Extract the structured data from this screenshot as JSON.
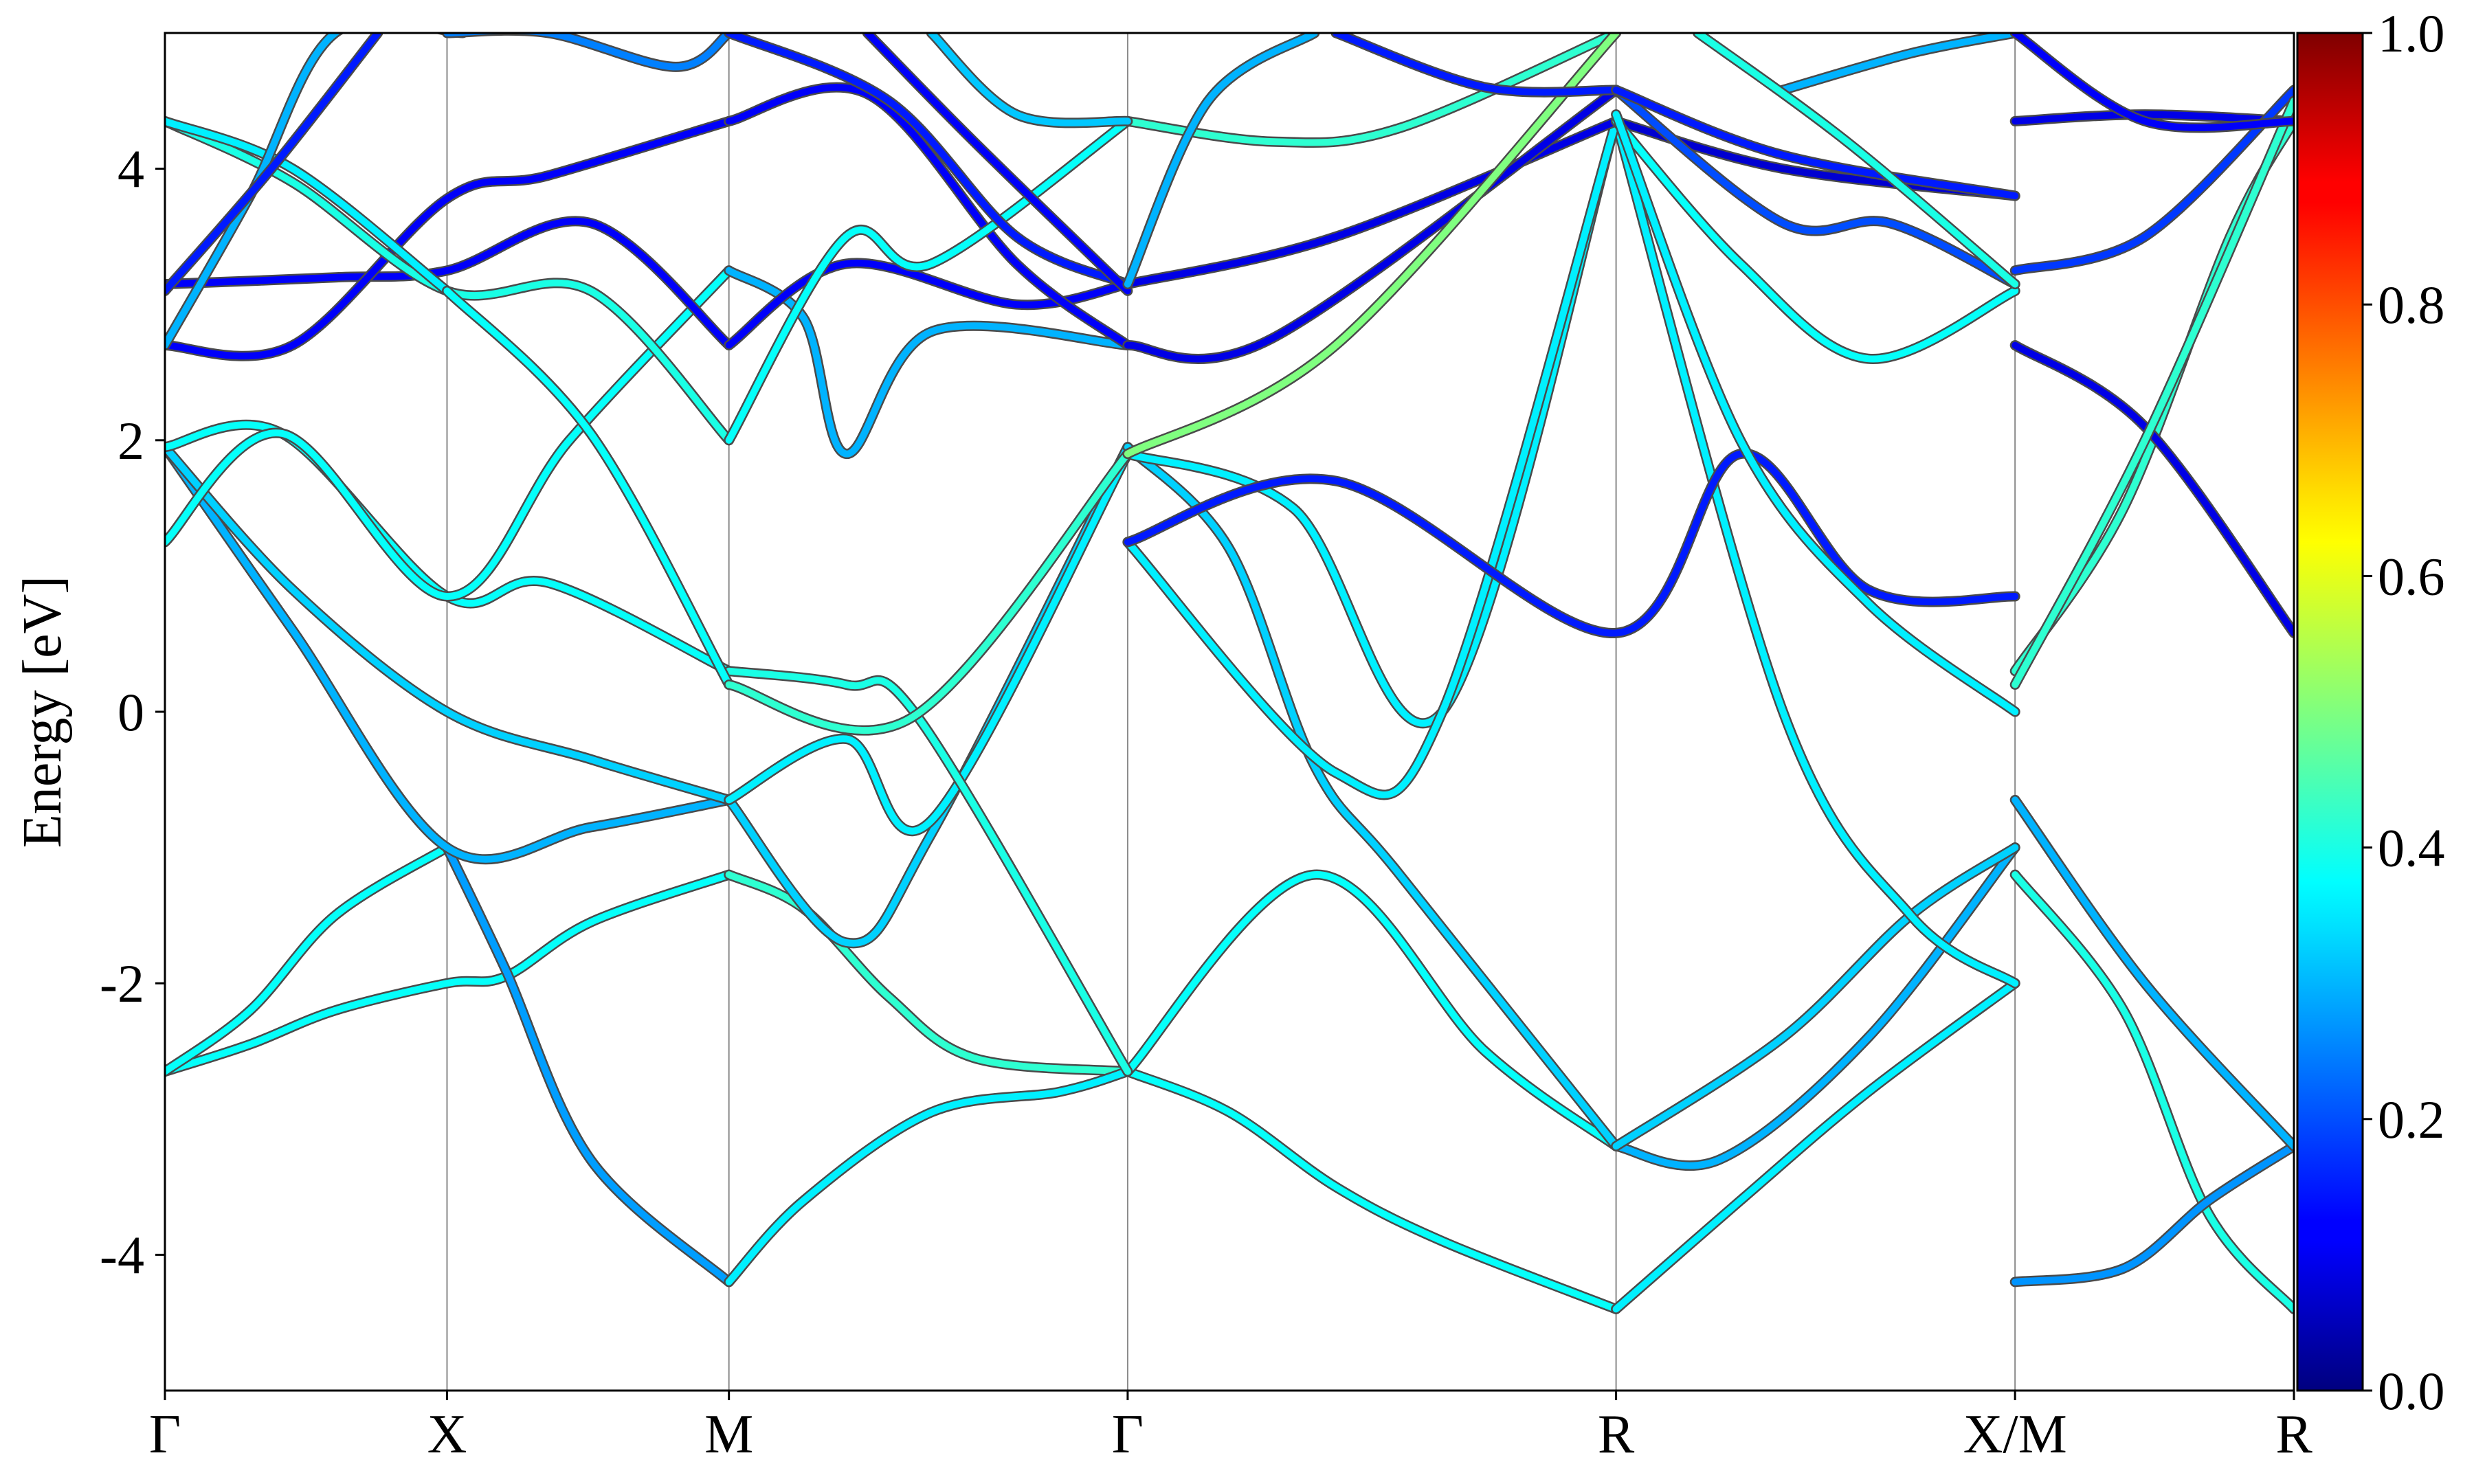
{
  "chart_data": {
    "type": "line",
    "subtype": "band-structure",
    "title": "",
    "xlabel": "",
    "ylabel": "Energy [eV]",
    "ylim": [
      -5,
      5
    ],
    "yticks": [
      -4,
      -2,
      0,
      2,
      4
    ],
    "ytick_labels": [
      "-4",
      "-2",
      "0",
      "2",
      "4"
    ],
    "xlim": [
      0,
      1
    ],
    "kpoints": [
      {
        "label": "Γ",
        "x": 0.0
      },
      {
        "label": "X",
        "x": 0.1325
      },
      {
        "label": "M",
        "x": 0.2649
      },
      {
        "label": "Γ",
        "x": 0.4522
      },
      {
        "label": "R",
        "x": 0.6816
      },
      {
        "label": "X/M",
        "x": 0.869
      },
      {
        "label": "R",
        "x": 1.0
      }
    ],
    "grid": "vertical lines at high-symmetry points",
    "colorbar": {
      "colormap": "jet",
      "range": [
        0.0,
        1.0
      ],
      "ticks": [
        0.0,
        0.2,
        0.4,
        0.6,
        0.8,
        1.0
      ],
      "tick_labels": [
        "0.0",
        "0.2",
        "0.4",
        "0.6",
        "0.8",
        "1.0"
      ],
      "placement": "right"
    },
    "series": [
      {
        "x": [
          0.0,
          0.04,
          0.08,
          0.1325,
          0.16,
          0.2,
          0.2649
        ],
        "y": [
          -2.65,
          -2.45,
          -2.2,
          -2.0,
          -1.95,
          -1.55,
          -1.2
        ],
        "weight": 0.38
      },
      {
        "x": [
          0.2649,
          0.3,
          0.34,
          0.38,
          0.4522
        ],
        "y": [
          -1.2,
          -1.45,
          -2.1,
          -2.55,
          -2.65
        ],
        "weight": 0.42
      },
      {
        "x": [
          0.4522,
          0.5,
          0.55,
          0.6,
          0.6816
        ],
        "y": [
          -2.65,
          -2.95,
          -3.5,
          -3.9,
          -4.4
        ],
        "weight": 0.38
      },
      {
        "x": [
          0.6816,
          0.74,
          0.8,
          0.869
        ],
        "y": [
          -4.4,
          -3.6,
          -2.8,
          -2.0
        ],
        "weight": 0.36
      },
      {
        "x": [
          0.869,
          0.92,
          0.96,
          1.0
        ],
        "y": [
          -1.2,
          -2.2,
          -3.7,
          -4.4
        ],
        "weight": 0.4
      },
      {
        "x": [
          0.0,
          0.04,
          0.08,
          0.1325
        ],
        "y": [
          -2.65,
          -2.2,
          -1.5,
          -1.0
        ],
        "weight": 0.38
      },
      {
        "x": [
          0.1325,
          0.16,
          0.2,
          0.2649
        ],
        "y": [
          -1.0,
          -1.9,
          -3.3,
          -4.2
        ],
        "weight": 0.28
      },
      {
        "x": [
          0.2649,
          0.3,
          0.36,
          0.42,
          0.4522
        ],
        "y": [
          -4.2,
          -3.6,
          -2.95,
          -2.8,
          -2.65
        ],
        "weight": 0.36
      },
      {
        "x": [
          0.4522,
          0.54,
          0.62,
          0.6816
        ],
        "y": [
          -2.65,
          -1.2,
          -2.5,
          -3.2
        ],
        "weight": 0.38
      },
      {
        "x": [
          0.6816,
          0.73,
          0.8,
          0.869
        ],
        "y": [
          -3.2,
          -3.3,
          -2.4,
          -1.0
        ],
        "weight": 0.3
      },
      {
        "x": [
          0.869,
          0.92,
          0.96,
          1.0
        ],
        "y": [
          -4.2,
          -4.1,
          -3.6,
          -3.2
        ],
        "weight": 0.27
      },
      {
        "x": [
          0.0,
          0.06,
          0.1325,
          0.2,
          0.2649
        ],
        "y": [
          1.95,
          0.6,
          -1.0,
          -0.85,
          -0.65
        ],
        "weight": 0.3
      },
      {
        "x": [
          0.2649,
          0.32,
          0.36,
          0.4522
        ],
        "y": [
          -0.65,
          -1.7,
          -0.9,
          1.95
        ],
        "weight": 0.33
      },
      {
        "x": [
          0.4522,
          0.5,
          0.54,
          0.58,
          0.6816
        ],
        "y": [
          1.95,
          1.2,
          -0.4,
          -1.2,
          -3.2
        ],
        "weight": 0.33
      },
      {
        "x": [
          0.6816,
          0.76,
          0.82,
          0.869
        ],
        "y": [
          -3.2,
          -2.4,
          -1.5,
          -1.0
        ],
        "weight": 0.33
      },
      {
        "x": [
          0.869,
          0.93,
          1.0
        ],
        "y": [
          -0.65,
          -2.0,
          -3.2
        ],
        "weight": 0.3
      },
      {
        "x": [
          0.0,
          0.06,
          0.1325,
          0.2,
          0.2649
        ],
        "y": [
          1.95,
          0.9,
          0.0,
          -0.35,
          -0.65
        ],
        "weight": 0.33
      },
      {
        "x": [
          0.2649,
          0.32,
          0.36,
          0.4522
        ],
        "y": [
          -0.65,
          -0.2,
          -0.8,
          1.9
        ],
        "weight": 0.36
      },
      {
        "x": [
          0.4522,
          0.53,
          0.6,
          0.6816
        ],
        "y": [
          1.9,
          1.5,
          0.0,
          4.35
        ],
        "weight": 0.36
      },
      {
        "x": [
          0.6816,
          0.76,
          0.82,
          0.869
        ],
        "y": [
          4.35,
          0.0,
          -1.5,
          -2.0
        ],
        "weight": 0.36
      },
      {
        "x": [
          0.869,
          0.92,
          0.97,
          1.0
        ],
        "y": [
          0.3,
          1.5,
          3.5,
          4.35
        ],
        "weight": 0.42
      },
      {
        "x": [
          0.0,
          0.055,
          0.1325,
          0.18,
          0.2649
        ],
        "y": [
          1.95,
          2.05,
          0.85,
          0.95,
          0.3
        ],
        "weight": 0.38
      },
      {
        "x": [
          0.2649,
          0.32,
          0.3542,
          0.4522
        ],
        "y": [
          0.3,
          0.2,
          -0.05,
          -2.65
        ],
        "weight": 0.4
      },
      {
        "x": [
          0.4522,
          0.55,
          0.6,
          0.6816
        ],
        "y": [
          1.25,
          -0.45,
          0.0,
          4.35
        ],
        "weight": 0.36
      },
      {
        "x": [
          0.0,
          0.055,
          0.1325,
          0.19,
          0.2649
        ],
        "y": [
          1.25,
          2.05,
          0.85,
          2.0,
          3.25
        ],
        "weight": 0.38
      },
      {
        "x": [
          0.2649,
          0.3,
          0.32,
          0.36,
          0.4522
        ],
        "y": [
          3.25,
          2.9,
          1.9,
          2.8,
          2.7
        ],
        "weight": 0.3
      },
      {
        "x": [
          0.4522,
          0.55,
          0.6816,
          0.74,
          0.8,
          0.869
        ],
        "y": [
          1.25,
          1.7,
          0.58,
          1.9,
          0.9,
          0.85
        ],
        "weight": 0.15
      },
      {
        "x": [
          0.869,
          0.93,
          1.0
        ],
        "y": [
          2.7,
          2.1,
          0.58
        ],
        "weight": 0.1
      },
      {
        "x": [
          0.0,
          0.08,
          0.1325,
          0.2,
          0.2649
        ],
        "y": [
          3.15,
          3.2,
          3.25,
          3.6,
          2.7
        ],
        "weight": 0.12
      },
      {
        "x": [
          0.2649,
          0.32,
          0.4,
          0.4522
        ],
        "y": [
          2.7,
          3.3,
          3.0,
          3.15
        ],
        "weight": 0.12
      },
      {
        "x": [
          0.4522,
          0.55,
          0.6816
        ],
        "y": [
          3.15,
          3.5,
          4.35
        ],
        "weight": 0.1
      },
      {
        "x": [
          0.6816,
          0.76,
          0.869
        ],
        "y": [
          4.35,
          4.0,
          3.8
        ],
        "weight": 0.08
      },
      {
        "x": [
          0.869,
          0.93,
          1.0
        ],
        "y": [
          4.35,
          4.4,
          4.35
        ],
        "weight": 0.1
      },
      {
        "x": [
          0.0,
          0.06,
          0.1325,
          0.18,
          0.2649
        ],
        "y": [
          2.7,
          2.7,
          3.78,
          3.95,
          4.35
        ],
        "weight": 0.12
      },
      {
        "x": [
          0.2649,
          0.33,
          0.4,
          0.4522
        ],
        "y": [
          4.35,
          4.55,
          3.3,
          2.7
        ],
        "weight": 0.12
      },
      {
        "x": [
          0.4522,
          0.52,
          0.6816
        ],
        "y": [
          2.7,
          2.75,
          4.58
        ],
        "weight": 0.1
      },
      {
        "x": [
          0.6816,
          0.76,
          0.81,
          0.869
        ],
        "y": [
          4.58,
          3.6,
          3.6,
          3.15
        ],
        "weight": 0.2
      },
      {
        "x": [
          0.869,
          0.93,
          1.0
        ],
        "y": [
          3.25,
          3.5,
          4.58
        ],
        "weight": 0.18
      },
      {
        "x": [
          0.0,
          0.06,
          0.1325,
          0.2,
          0.2649
        ],
        "y": [
          4.35,
          3.9,
          3.1,
          3.1,
          2.0
        ],
        "weight": 0.4
      },
      {
        "x": [
          0.2649,
          0.32,
          0.36,
          0.4522
        ],
        "y": [
          2.0,
          3.5,
          3.3,
          4.35
        ],
        "weight": 0.38
      },
      {
        "x": [
          0.4522,
          0.52,
          0.58,
          0.6816
        ],
        "y": [
          4.35,
          4.2,
          4.3,
          5.0
        ],
        "weight": 0.42
      },
      {
        "x": [
          0.6816,
          0.74,
          0.8,
          0.869
        ],
        "y": [
          4.35,
          3.3,
          2.6,
          3.1
        ],
        "weight": 0.38
      },
      {
        "x": [
          0.0,
          0.06,
          0.1325
        ],
        "y": [
          4.35,
          4.0,
          3.1
        ],
        "weight": 0.36
      },
      {
        "x": [
          0.1325,
          0.2,
          0.2649
        ],
        "y": [
          3.1,
          2.05,
          0.2
        ],
        "weight": 0.38
      },
      {
        "x": [
          0.2649,
          0.35,
          0.4522
        ],
        "y": [
          0.2,
          -0.05,
          1.9
        ],
        "weight": 0.42
      },
      {
        "x": [
          0.4522,
          0.55,
          0.6816
        ],
        "y": [
          1.9,
          2.7,
          5.0
        ],
        "weight": 0.5
      },
      {
        "x": [
          0.6816,
          0.74,
          0.8,
          0.869
        ],
        "y": [
          4.4,
          2.0,
          0.8,
          0.0
        ],
        "weight": 0.36
      },
      {
        "x": [
          0.869,
          0.93,
          1.0
        ],
        "y": [
          0.2,
          2.0,
          4.5
        ],
        "weight": 0.42
      },
      {
        "x": [
          0.0,
          0.04,
          0.08,
          0.14
        ],
        "y": [
          2.7,
          3.8,
          5.0,
          5.0
        ],
        "weight": 0.3
      },
      {
        "x": [
          0.0,
          0.05,
          0.1
        ],
        "y": [
          3.1,
          4.0,
          5.0
        ],
        "weight": 0.15
      },
      {
        "x": [
          0.1325,
          0.18,
          0.24,
          0.2649
        ],
        "y": [
          5.0,
          5.0,
          4.75,
          5.0
        ],
        "weight": 0.25
      },
      {
        "x": [
          0.2649,
          0.34,
          0.4,
          0.4522
        ],
        "y": [
          5.0,
          4.5,
          3.5,
          3.15
        ],
        "weight": 0.15
      },
      {
        "x": [
          0.33,
          0.38,
          0.4522
        ],
        "y": [
          5.0,
          4.2,
          3.1
        ],
        "weight": 0.12
      },
      {
        "x": [
          0.36,
          0.4,
          0.4522
        ],
        "y": [
          5.0,
          4.4,
          4.35
        ],
        "weight": 0.32
      },
      {
        "x": [
          0.4522,
          0.49,
          0.54
        ],
        "y": [
          3.15,
          4.5,
          5.0
        ],
        "weight": 0.3
      },
      {
        "x": [
          0.55,
          0.62,
          0.6816
        ],
        "y": [
          5.0,
          4.6,
          4.58
        ],
        "weight": 0.15
      },
      {
        "x": [
          0.6816,
          0.76,
          0.869
        ],
        "y": [
          4.58,
          4.1,
          3.8
        ],
        "weight": 0.15
      },
      {
        "x": [
          0.76,
          0.82,
          0.869
        ],
        "y": [
          4.58,
          4.85,
          5.0
        ],
        "weight": 0.3
      },
      {
        "x": [
          0.869,
          0.93,
          1.0
        ],
        "y": [
          5.0,
          4.35,
          4.35
        ],
        "weight": 0.12
      },
      {
        "x": [
          0.72,
          0.79,
          0.869
        ],
        "y": [
          5.0,
          4.2,
          3.15
        ],
        "weight": 0.4
      }
    ]
  }
}
